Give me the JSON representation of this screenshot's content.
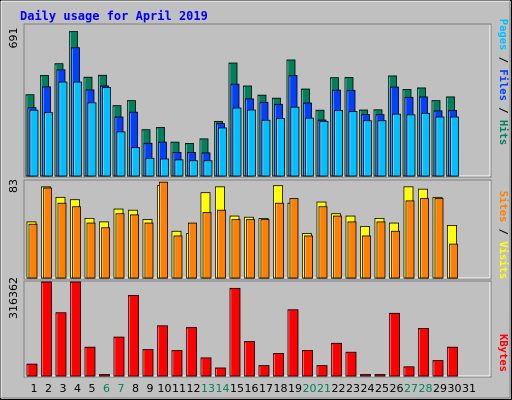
{
  "title": "Daily usage for April 2019",
  "colors": {
    "background": "#c0c0c0",
    "border": "#000000",
    "title": "#0000ff",
    "hits": "#00805c",
    "files": "#0040ff",
    "pages": "#00c0ff",
    "visits": "#ffff00",
    "sites": "#ff8000",
    "kbytes": "#ff0000",
    "day_normal": "#000000",
    "day_weekend": "#00805c"
  },
  "chart_data": [
    {
      "type": "bar",
      "panel": "hits-files-pages",
      "ymax_label": "691",
      "ymax": 691,
      "legend": [
        "Pages",
        "Files",
        "Hits"
      ],
      "categories": [
        "1",
        "2",
        "3",
        "4",
        "5",
        "6",
        "7",
        "8",
        "9",
        "10",
        "11",
        "12",
        "13",
        "14",
        "15",
        "16",
        "17",
        "18",
        "19",
        "20",
        "21",
        "22",
        "23",
        "24",
        "25",
        "26",
        "27",
        "28",
        "29",
        "30",
        "31"
      ],
      "series": [
        {
          "name": "Hits",
          "values": [
            372,
            460,
            514,
            661,
            452,
            461,
            322,
            345,
            212,
            222,
            155,
            149,
            170,
            250,
            517,
            412,
            370,
            356,
            531,
            398,
            301,
            450,
            451,
            302,
            303,
            458,
            396,
            403,
            345,
            362,
            0
          ]
        },
        {
          "name": "Files",
          "values": [
            313,
            408,
            486,
            587,
            394,
            412,
            270,
            292,
            150,
            155,
            108,
            108,
            106,
            240,
            420,
            353,
            337,
            328,
            460,
            334,
            256,
            393,
            392,
            281,
            281,
            407,
            360,
            362,
            298,
            300,
            0
          ]
        },
        {
          "name": "Pages",
          "values": [
            301,
            290,
            430,
            430,
            335,
            405,
            202,
            130,
            81,
            78,
            74,
            70,
            70,
            220,
            311,
            302,
            255,
            263,
            315,
            265,
            250,
            300,
            295,
            253,
            253,
            283,
            280,
            287,
            270,
            270,
            0
          ]
        }
      ]
    },
    {
      "type": "bar",
      "panel": "visits-sites",
      "ymax_label": "83",
      "ymax": 83,
      "legend": [
        "Sites",
        "Visits"
      ],
      "categories": [
        "1",
        "2",
        "3",
        "4",
        "5",
        "6",
        "7",
        "8",
        "9",
        "10",
        "11",
        "12",
        "13",
        "14",
        "15",
        "16",
        "17",
        "18",
        "19",
        "20",
        "21",
        "22",
        "23",
        "24",
        "25",
        "26",
        "27",
        "28",
        "29",
        "30",
        "31"
      ],
      "series": [
        {
          "name": "Visits",
          "values": [
            48,
            78,
            69,
            67,
            51,
            48,
            59,
            58,
            50,
            79,
            40,
            38,
            73,
            78,
            53,
            52,
            51,
            79,
            64,
            38,
            65,
            55,
            53,
            44,
            51,
            47,
            78,
            76,
            69,
            45,
            0
          ]
        },
        {
          "name": "Sites",
          "values": [
            46,
            77,
            64,
            61,
            47,
            43,
            55,
            54,
            47,
            82,
            36,
            47,
            56,
            58,
            50,
            50,
            50,
            64,
            68,
            36,
            61,
            53,
            48,
            36,
            48,
            40,
            66,
            68,
            68,
            29,
            0
          ]
        }
      ]
    },
    {
      "type": "bar",
      "panel": "kbytes",
      "ymax_label": "316362",
      "ymax": 316362,
      "legend": [
        "KBytes"
      ],
      "categories": [
        "1",
        "2",
        "3",
        "4",
        "5",
        "6",
        "7",
        "8",
        "9",
        "10",
        "11",
        "12",
        "13",
        "14",
        "15",
        "16",
        "17",
        "18",
        "19",
        "20",
        "21",
        "22",
        "23",
        "24",
        "25",
        "26",
        "27",
        "28",
        "29",
        "30",
        "31"
      ],
      "series": [
        {
          "name": "KBytes",
          "values": [
            40000,
            316362,
            213000,
            316362,
            97000,
            5000,
            131000,
            271000,
            89000,
            169000,
            86000,
            163000,
            61000,
            27000,
            295000,
            116000,
            35000,
            76000,
            223000,
            86000,
            35000,
            110000,
            80000,
            5000,
            5000,
            211000,
            31000,
            160000,
            52000,
            97000,
            0
          ]
        }
      ]
    }
  ],
  "x_axis": {
    "days": [
      "1",
      "2",
      "3",
      "4",
      "5",
      "6",
      "7",
      "8",
      "9",
      "10",
      "11",
      "12",
      "13",
      "14",
      "15",
      "16",
      "17",
      "18",
      "19",
      "20",
      "21",
      "22",
      "23",
      "24",
      "25",
      "26",
      "27",
      "28",
      "29",
      "30",
      "31"
    ],
    "weekend_days": [
      "6",
      "7",
      "13",
      "14",
      "20",
      "21",
      "27",
      "28"
    ]
  }
}
